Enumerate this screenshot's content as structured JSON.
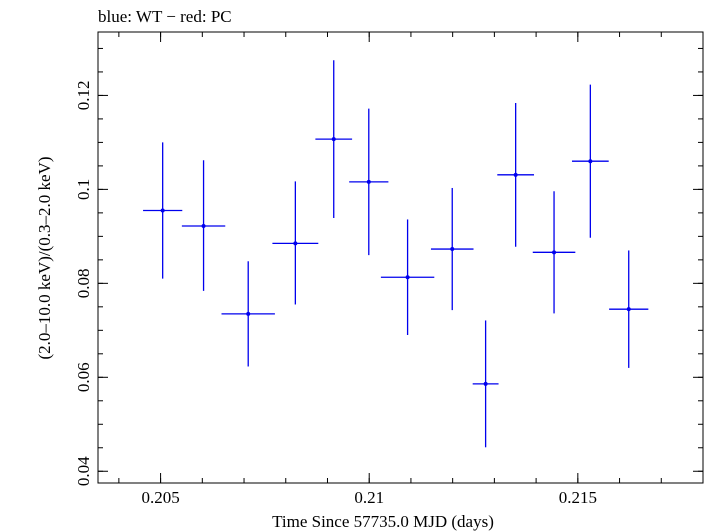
{
  "header": {
    "title": "blue: WT − red: PC"
  },
  "chart_data": {
    "type": "scatter",
    "title": "blue: WT − red: PC",
    "xlabel": "Time Since 57735.0 MJD (days)",
    "ylabel": "(2.0–10.0 keV)/(0.3–2.0 keV)",
    "xlim": [
      0.2035,
      0.218
    ],
    "ylim": [
      0.0375,
      0.1335
    ],
    "x_ticks": [
      0.205,
      0.21,
      0.215
    ],
    "x_tick_labels": [
      "0.205",
      "0.21",
      "0.215"
    ],
    "y_ticks": [
      0.04,
      0.06,
      0.08,
      0.1,
      0.12
    ],
    "y_tick_labels": [
      "0.04",
      "0.06",
      "0.08",
      "0.1",
      "0.12"
    ],
    "grid": false,
    "series": [
      {
        "color": "#0000ee",
        "points": [
          {
            "x": 0.20505,
            "xerr": 0.00047,
            "y": 0.0955,
            "yerr_low": 0.0145,
            "yerr_high": 0.0145
          },
          {
            "x": 0.20603,
            "xerr": 0.00052,
            "y": 0.0922,
            "yerr_low": 0.0138,
            "yerr_high": 0.014
          },
          {
            "x": 0.2071,
            "xerr": 0.00064,
            "y": 0.0735,
            "yerr_low": 0.0112,
            "yerr_high": 0.0112
          },
          {
            "x": 0.20823,
            "xerr": 0.00055,
            "y": 0.0885,
            "yerr_low": 0.013,
            "yerr_high": 0.0132
          },
          {
            "x": 0.20915,
            "xerr": 0.00044,
            "y": 0.1107,
            "yerr_low": 0.0168,
            "yerr_high": 0.0168
          },
          {
            "x": 0.20999,
            "xerr": 0.00047,
            "y": 0.1016,
            "yerr_low": 0.0156,
            "yerr_high": 0.0156
          },
          {
            "x": 0.21092,
            "xerr": 0.00064,
            "y": 0.0813,
            "yerr_low": 0.0123,
            "yerr_high": 0.0123
          },
          {
            "x": 0.21199,
            "xerr": 0.00051,
            "y": 0.0873,
            "yerr_low": 0.013,
            "yerr_high": 0.013
          },
          {
            "x": 0.21279,
            "xerr": 0.00031,
            "y": 0.0586,
            "yerr_low": 0.0135,
            "yerr_high": 0.0135
          },
          {
            "x": 0.21351,
            "xerr": 0.00044,
            "y": 0.1031,
            "yerr_low": 0.0153,
            "yerr_high": 0.0153
          },
          {
            "x": 0.21443,
            "xerr": 0.00051,
            "y": 0.0866,
            "yerr_low": 0.013,
            "yerr_high": 0.013
          },
          {
            "x": 0.2153,
            "xerr": 0.00044,
            "y": 0.106,
            "yerr_low": 0.0163,
            "yerr_high": 0.0163
          },
          {
            "x": 0.21622,
            "xerr": 0.00047,
            "y": 0.0745,
            "yerr_low": 0.0125,
            "yerr_high": 0.0125
          }
        ]
      }
    ]
  }
}
